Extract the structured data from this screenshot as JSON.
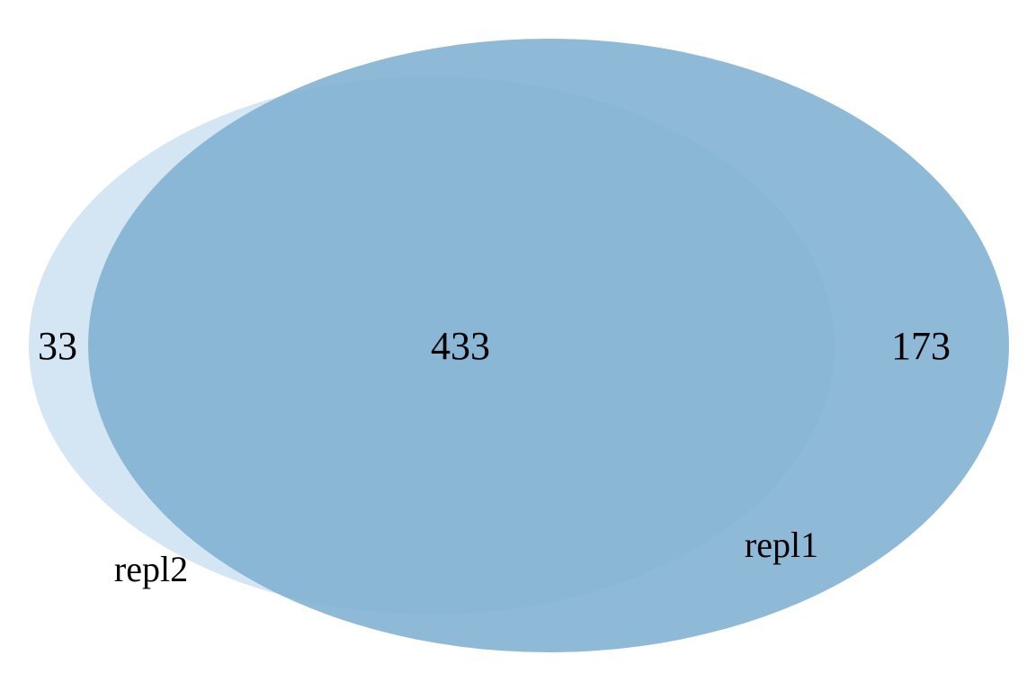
{
  "venn": {
    "sets": [
      {
        "id": "repl1",
        "label": "repl1",
        "color": "#7fb0d2",
        "opacity": 0.88
      },
      {
        "id": "repl2",
        "label": "repl2",
        "color": "#c9dff0",
        "opacity": 0.8
      }
    ],
    "regions": {
      "repl2_only": "33",
      "intersection": "433",
      "repl1_only": "173"
    },
    "background": "#ffffff"
  }
}
